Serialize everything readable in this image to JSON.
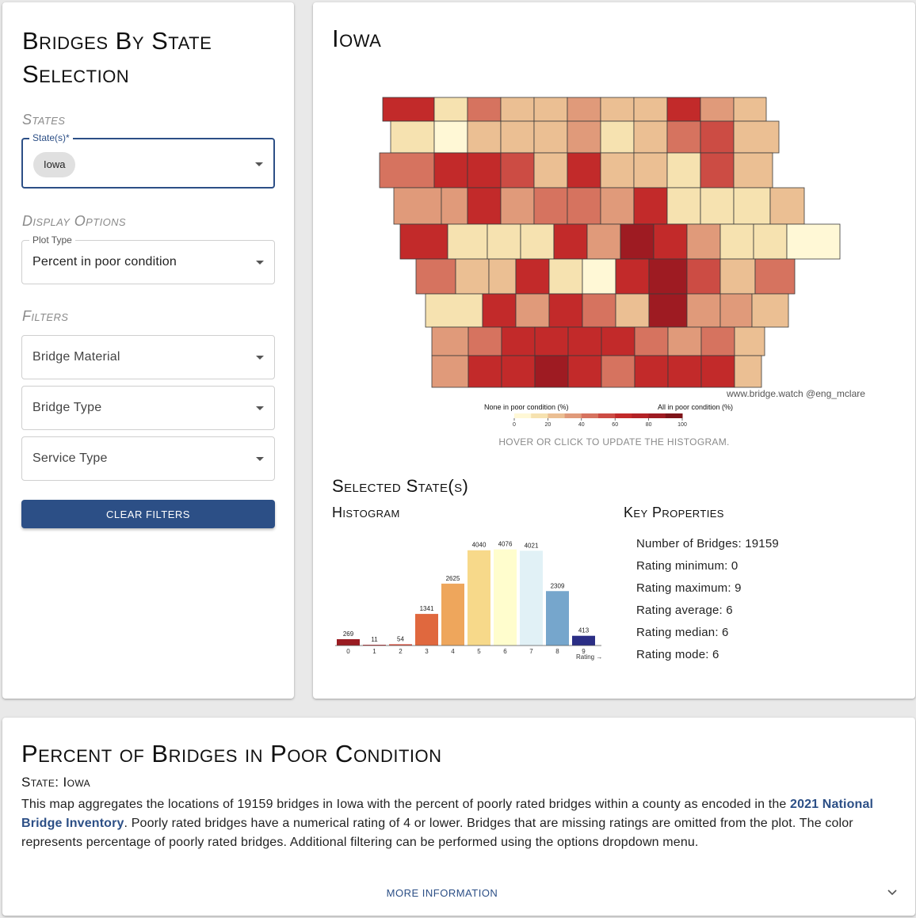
{
  "left_panel": {
    "title": "Bridges By State Selection",
    "states_label": "States",
    "states_field_legend": "State(s)*",
    "selected_state_chip": "Iowa",
    "display_options_label": "Display Options",
    "plot_type_legend": "Plot Type",
    "plot_type_value": "Percent in poor condition",
    "filters_label": "Filters",
    "filters": [
      "Bridge Material",
      "Bridge Type",
      "Service Type"
    ],
    "clear_button": "Clear Filters"
  },
  "right_panel": {
    "state_title": "Iowa",
    "attribution": "www.bridge.watch @eng_mclare",
    "legend_left_label": "None in poor condition (%)",
    "legend_right_label": "All in poor condition (%)",
    "legend_ticks": [
      "0",
      "20",
      "40",
      "60",
      "80",
      "100"
    ],
    "hover_hint": "Hover or click to update the histogram.",
    "selected_title": "Selected State(s)",
    "histogram_title": "Histogram",
    "key_properties_title": "Key Properties",
    "key_properties": [
      "Number of Bridges: 19159",
      "Rating minimum: 0",
      "Rating maximum: 9",
      "Rating average: 6",
      "Rating median: 6",
      "Rating mode: 6"
    ],
    "colors": {
      "accent": "#2c4f86",
      "map_scale": [
        "#fff8d6",
        "#f6e2b0",
        "#ebbf93",
        "#e09a7a",
        "#d6735f",
        "#cc4c44",
        "#c22a2a",
        "#9e1b22"
      ]
    }
  },
  "chart_data": {
    "type": "bar",
    "categories": [
      "0",
      "1",
      "2",
      "3",
      "4",
      "5",
      "6",
      "7",
      "8",
      "9"
    ],
    "values": [
      269,
      11,
      54,
      1341,
      2625,
      4040,
      4076,
      4021,
      2309,
      413
    ],
    "bar_colors": [
      "#9a1c22",
      "#c1272d",
      "#d84a38",
      "#e0683e",
      "#eea65c",
      "#f7d98a",
      "#fffdcd",
      "#e1f1f6",
      "#76a6cc",
      "#2b2e85"
    ],
    "xlabel": "Rating →",
    "ylabel": "",
    "ylim": [
      0,
      4300
    ],
    "grid": false
  },
  "bottom_panel": {
    "title": "Percent of Bridges in Poor Condition",
    "state_line": "State: Iowa",
    "description_before": "This map aggregates the locations of 19159 bridges in Iowa with the percent of poorly rated bridges within a county as encoded in the ",
    "description_link": "2021 National Bridge Inventory",
    "description_after": ". Poorly rated bridges have a numerical rating of 4 or lower. Bridges that are missing ratings are omitted from the plot. The color represents percentage of poorly rated bridges. Additional filtering can be performed using the options dropdown menu.",
    "more_information": "More Information"
  }
}
